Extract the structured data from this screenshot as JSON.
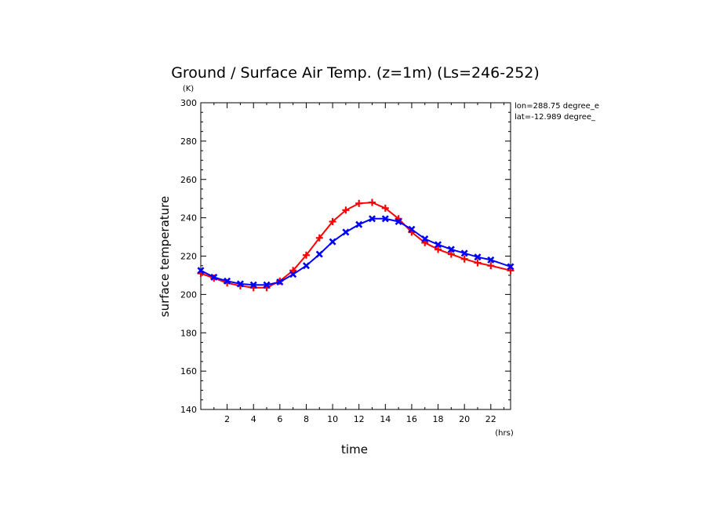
{
  "chart_data": {
    "type": "line",
    "title": "Ground / Surface Air Temp. (z=1m) (Ls=246-252)",
    "xlabel": "time",
    "ylabel": "surface temperature",
    "x_unit": "(hrs)",
    "y_unit": "(K)",
    "annotations": [
      "lon=288.75 degree_e",
      "lat=-12.989 degree_"
    ],
    "xlim": [
      0,
      23.5
    ],
    "ylim": [
      140,
      300
    ],
    "xticks": [
      2,
      4,
      6,
      8,
      10,
      12,
      14,
      16,
      18,
      20,
      22
    ],
    "yticks": [
      140,
      160,
      180,
      200,
      220,
      240,
      260,
      280,
      300
    ],
    "grid": false,
    "x": [
      0,
      1,
      2,
      3,
      4,
      5,
      6,
      7,
      8,
      9,
      10,
      11,
      12,
      13,
      14,
      15,
      16,
      17,
      18,
      19,
      20,
      21,
      22,
      23.5
    ],
    "series": [
      {
        "color": "#ff0000",
        "marker": "plus",
        "values": [
          211,
          208.5,
          206,
          204.5,
          203.5,
          203.5,
          207,
          212.5,
          220.5,
          229.5,
          238,
          244,
          247.5,
          248,
          245,
          239.5,
          232.5,
          227,
          223.5,
          221,
          218.5,
          216.5,
          215,
          212.5
        ]
      },
      {
        "color": "#0000ff",
        "marker": "x",
        "values": [
          212.5,
          209,
          207,
          205.5,
          205,
          205,
          206.5,
          210.5,
          215,
          221,
          227.5,
          232.5,
          236.5,
          239.5,
          239.5,
          238,
          234,
          229,
          226,
          223.5,
          221.5,
          219.5,
          218,
          214.5
        ]
      }
    ]
  }
}
